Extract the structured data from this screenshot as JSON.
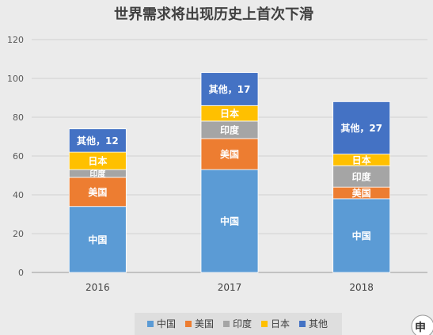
{
  "chart_data": {
    "type": "bar",
    "stacked": true,
    "title": "世界需求将出现历史上首次下滑",
    "categories": [
      "2016",
      "2017",
      "2018"
    ],
    "ylim": [
      0,
      120
    ],
    "yticks": [
      "0",
      "20",
      "40",
      "60",
      "80",
      "100",
      "120"
    ],
    "grid": true,
    "legend_position": "bottom",
    "series": [
      {
        "name": "中国",
        "color": "#5b9bd5",
        "values": [
          34,
          53,
          38
        ],
        "labels": [
          "中国",
          "中国",
          "中国"
        ]
      },
      {
        "name": "美国",
        "color": "#ed7d31",
        "values": [
          15,
          16,
          6
        ],
        "labels": [
          "美国",
          "美国",
          "美国"
        ]
      },
      {
        "name": "印度",
        "color": "#a5a5a5",
        "values": [
          4,
          9,
          11
        ],
        "labels": [
          "印度",
          "印度",
          "印度"
        ]
      },
      {
        "name": "日本",
        "color": "#ffc000",
        "values": [
          9,
          8,
          6
        ],
        "labels": [
          "日本",
          "日本",
          "日本"
        ]
      },
      {
        "name": "其他",
        "color": "#4472c4",
        "values": [
          12,
          17,
          27
        ],
        "labels": [
          "其他，12",
          "其他，17",
          "其他，27"
        ]
      }
    ]
  },
  "watermark": "申"
}
